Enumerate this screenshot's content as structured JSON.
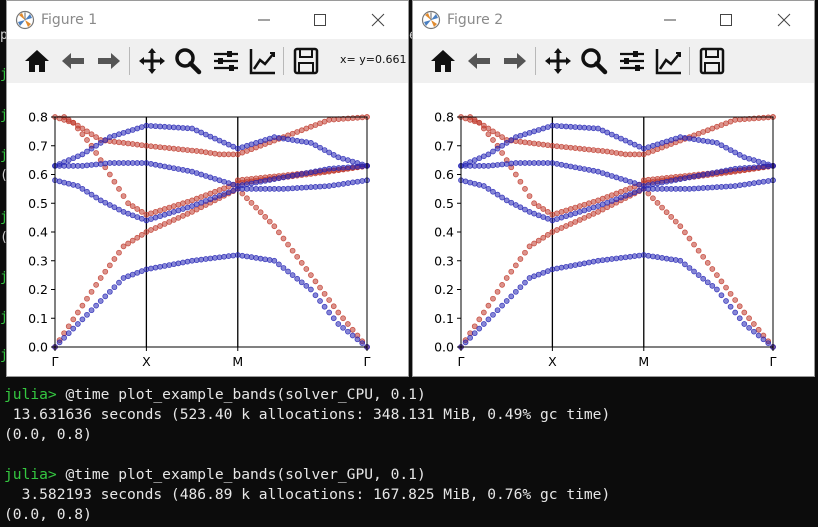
{
  "terminal": {
    "lines": [
      {
        "prompt": "julia>",
        "text": " @time plot_example_bands(solver_CPU, 0.1)"
      },
      {
        "prompt": "",
        "text": " 13.631636 seconds (523.40 k allocations: 348.131 MiB, 0.49% gc time)"
      },
      {
        "prompt": "",
        "text": "(0.0, 0.8)"
      },
      {
        "prompt": "julia>",
        "text": " @time plot_example_bands(solver_GPU, 0.1)"
      },
      {
        "prompt": "",
        "text": "  3.582193 seconds (486.89 k allocations: 167.825 MiB, 0.76% gc time)"
      },
      {
        "prompt": "",
        "text": "(0.0, 0.8)"
      }
    ]
  },
  "windows": [
    {
      "title": "Figure 1",
      "coord_readout": "x= y=0.661"
    },
    {
      "title": "Figure 2",
      "coord_readout": ""
    }
  ],
  "toolbar_icons": [
    "home-icon",
    "back-arrow-icon",
    "forward-arrow-icon",
    "pan-move-icon",
    "zoom-magnifier-icon",
    "subplots-config-icon",
    "edit-axes-icon",
    "save-floppy-icon"
  ],
  "colors": {
    "terminal_bg": "#0c0c0c",
    "terminal_text": "#e6e6e6",
    "prompt_green": "#34c740",
    "band_red": "#c0392b",
    "band_blue": "#2323b4"
  },
  "chart_data": [
    {
      "type": "scatter",
      "title": "",
      "xlabel": "",
      "ylabel": "",
      "ylim": [
        0.0,
        0.8
      ],
      "yticks": [
        "0.0",
        "0.1",
        "0.2",
        "0.3",
        "0.4",
        "0.5",
        "0.6",
        "0.7",
        "0.8"
      ],
      "xticks": [
        "Γ",
        "X",
        "M",
        "Γ"
      ],
      "kpoint_x": [
        0,
        1,
        2,
        3.414
      ],
      "x_range": [
        0,
        3.414
      ],
      "grid": false,
      "legend": "none",
      "series": [
        {
          "color": "red",
          "x": [
            0,
            0.25,
            0.5,
            0.75,
            1.0,
            1.5,
            2.0,
            2.4,
            2.8,
            3.1,
            3.414
          ],
          "values": [
            0.0,
            0.12,
            0.24,
            0.35,
            0.4,
            0.47,
            0.55,
            0.42,
            0.25,
            0.12,
            0.0
          ]
        },
        {
          "color": "red",
          "x": [
            0,
            0.2,
            0.4,
            0.6,
            0.8,
            1.0,
            1.5,
            2.0,
            2.5,
            3.0,
            3.414
          ],
          "values": [
            0.8,
            0.78,
            0.7,
            0.6,
            0.5,
            0.46,
            0.51,
            0.57,
            0.59,
            0.61,
            0.63
          ]
        },
        {
          "color": "red",
          "x": [
            0.1,
            0.3,
            0.5,
            0.75,
            1.0,
            1.3,
            1.6,
            1.8,
            2.0,
            2.5,
            3.0,
            3.414
          ],
          "values": [
            0.8,
            0.76,
            0.72,
            0.71,
            0.7,
            0.69,
            0.68,
            0.67,
            0.67,
            0.73,
            0.79,
            0.8
          ]
        },
        {
          "color": "red",
          "x": [
            2.0,
            2.3,
            2.6,
            2.9,
            3.2,
            3.414
          ],
          "values": [
            0.58,
            0.59,
            0.6,
            0.61,
            0.62,
            0.63
          ]
        },
        {
          "color": "blue",
          "x": [
            0,
            0.25,
            0.5,
            0.75,
            1.0,
            1.5,
            2.0,
            2.4,
            2.8,
            3.1,
            3.414
          ],
          "values": [
            0.0,
            0.08,
            0.16,
            0.24,
            0.27,
            0.3,
            0.32,
            0.3,
            0.2,
            0.08,
            0.0
          ]
        },
        {
          "color": "blue",
          "x": [
            0,
            0.25,
            0.5,
            0.75,
            1.0,
            1.5,
            2.0,
            2.5,
            3.0,
            3.414
          ],
          "values": [
            0.58,
            0.56,
            0.51,
            0.47,
            0.44,
            0.49,
            0.55,
            0.55,
            0.56,
            0.58
          ]
        },
        {
          "color": "blue",
          "x": [
            0,
            0.3,
            0.6,
            1.0,
            1.5,
            2.0,
            2.5,
            3.0,
            3.414
          ],
          "values": [
            0.63,
            0.63,
            0.64,
            0.64,
            0.61,
            0.56,
            0.59,
            0.62,
            0.63
          ]
        },
        {
          "color": "blue",
          "x": [
            0,
            0.3,
            0.6,
            1.0,
            1.5,
            2.0,
            2.4,
            2.8,
            3.1,
            3.414
          ],
          "values": [
            0.63,
            0.67,
            0.73,
            0.77,
            0.76,
            0.69,
            0.73,
            0.71,
            0.66,
            0.63
          ]
        }
      ]
    }
  ]
}
